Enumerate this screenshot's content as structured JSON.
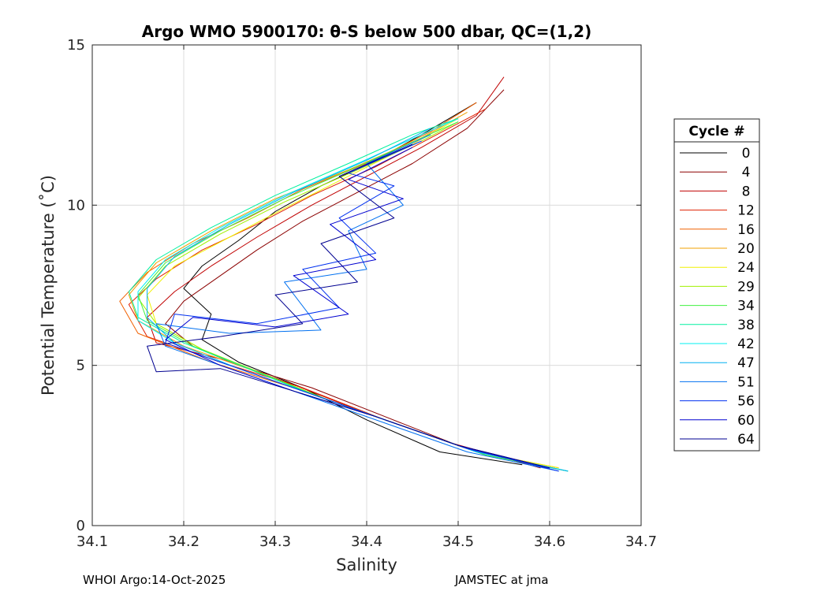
{
  "chart_data": {
    "type": "line",
    "title": "Argo WMO 5900170: θ-S below 500 dbar,  QC=(1,2)",
    "xlabel": "Salinity",
    "ylabel": "Potential Temperature (˚C)",
    "xlim": [
      34.1,
      34.7
    ],
    "ylim": [
      0,
      15
    ],
    "xticks": [
      "34.1",
      "34.2",
      "34.3",
      "34.4",
      "34.5",
      "34.6",
      "34.7"
    ],
    "yticks": [
      "0",
      "5",
      "10",
      "15"
    ],
    "grid": true,
    "legend": {
      "title": "Cycle #",
      "position": "outside-right",
      "entries": [
        {
          "label": "0",
          "color": "#000000"
        },
        {
          "label": "4",
          "color": "#8b0000"
        },
        {
          "label": "8",
          "color": "#c00000"
        },
        {
          "label": "12",
          "color": "#e02000"
        },
        {
          "label": "16",
          "color": "#f06000"
        },
        {
          "label": "20",
          "color": "#f0a000"
        },
        {
          "label": "24",
          "color": "#f0f000"
        },
        {
          "label": "29",
          "color": "#a0f000"
        },
        {
          "label": "34",
          "color": "#40f040"
        },
        {
          "label": "38",
          "color": "#00f0a0"
        },
        {
          "label": "42",
          "color": "#00f0f0"
        },
        {
          "label": "47",
          "color": "#00b0f0"
        },
        {
          "label": "51",
          "color": "#0070f0"
        },
        {
          "label": "56",
          "color": "#0030f0"
        },
        {
          "label": "60",
          "color": "#0000d0"
        },
        {
          "label": "64",
          "color": "#000090"
        }
      ]
    },
    "series": [
      {
        "name": "0",
        "color": "#000000",
        "x": [
          34.57,
          34.48,
          34.4,
          34.33,
          34.26,
          34.22,
          34.23,
          34.2,
          34.22,
          34.26,
          34.3,
          34.35,
          34.41,
          34.46,
          34.52
        ],
        "y": [
          1.9,
          2.3,
          3.3,
          4.3,
          5.1,
          5.8,
          6.6,
          7.4,
          8.1,
          8.9,
          9.8,
          10.6,
          11.4,
          12.2,
          13.2
        ]
      },
      {
        "name": "4",
        "color": "#8b0000",
        "x": [
          34.59,
          34.5,
          34.42,
          34.34,
          34.26,
          34.21,
          34.18,
          34.2,
          34.24,
          34.28,
          34.33,
          34.39,
          34.45,
          34.51,
          34.55
        ],
        "y": [
          1.8,
          2.5,
          3.4,
          4.3,
          5.0,
          5.6,
          6.3,
          7.0,
          7.8,
          8.6,
          9.5,
          10.4,
          11.3,
          12.4,
          13.6
        ]
      },
      {
        "name": "8",
        "color": "#c00000",
        "x": [
          34.59,
          34.49,
          34.4,
          34.32,
          34.24,
          34.17,
          34.16,
          34.19,
          34.23,
          34.28,
          34.34,
          34.4,
          34.46,
          34.52,
          34.55
        ],
        "y": [
          1.8,
          2.6,
          3.5,
          4.4,
          5.2,
          5.7,
          6.5,
          7.3,
          8.1,
          9.0,
          10.0,
          10.9,
          11.8,
          12.8,
          14.0
        ]
      },
      {
        "name": "12",
        "color": "#e02000",
        "x": [
          34.6,
          34.51,
          34.42,
          34.33,
          34.24,
          34.16,
          34.14,
          34.17,
          34.22,
          34.28,
          34.34,
          34.41,
          34.47,
          34.53
        ],
        "y": [
          1.8,
          2.4,
          3.3,
          4.3,
          5.1,
          5.9,
          6.9,
          7.7,
          8.6,
          9.4,
          10.3,
          11.2,
          12.1,
          13.0
        ]
      },
      {
        "name": "16",
        "color": "#f06000",
        "x": [
          34.6,
          34.5,
          34.41,
          34.32,
          34.23,
          34.15,
          34.13,
          34.16,
          34.21,
          34.27,
          34.33,
          34.4,
          34.47,
          34.52
        ],
        "y": [
          1.8,
          2.5,
          3.4,
          4.3,
          5.1,
          6.0,
          7.0,
          7.9,
          8.8,
          9.6,
          10.5,
          11.3,
          12.3,
          13.2
        ]
      },
      {
        "name": "20",
        "color": "#f0a000",
        "x": [
          34.61,
          34.52,
          34.43,
          34.34,
          34.27,
          34.2,
          34.15,
          34.14,
          34.17,
          34.23,
          34.3,
          34.38,
          34.46,
          34.51
        ],
        "y": [
          1.8,
          2.3,
          3.2,
          4.1,
          4.9,
          5.6,
          6.4,
          7.2,
          8.2,
          9.2,
          10.2,
          11.1,
          12.1,
          12.9
        ]
      },
      {
        "name": "24",
        "color": "#f0f000",
        "x": [
          34.61,
          34.52,
          34.43,
          34.35,
          34.28,
          34.22,
          34.17,
          34.16,
          34.19,
          34.25,
          34.31,
          34.38,
          34.45,
          34.5
        ],
        "y": [
          1.8,
          2.3,
          3.2,
          4.0,
          4.8,
          5.5,
          6.3,
          7.2,
          8.1,
          9.0,
          9.9,
          10.9,
          11.9,
          12.7
        ]
      },
      {
        "name": "29",
        "color": "#a0f000",
        "x": [
          34.62,
          34.53,
          34.44,
          34.36,
          34.29,
          34.22,
          34.17,
          34.15,
          34.18,
          34.24,
          34.31,
          34.39,
          34.46,
          34.5
        ],
        "y": [
          1.7,
          2.2,
          3.1,
          3.9,
          4.7,
          5.5,
          6.3,
          7.1,
          8.1,
          9.1,
          10.1,
          11.1,
          12.0,
          12.6
        ]
      },
      {
        "name": "34",
        "color": "#40f040",
        "x": [
          34.62,
          34.53,
          34.44,
          34.35,
          34.28,
          34.21,
          34.16,
          34.15,
          34.18,
          34.24,
          34.31,
          34.39,
          34.46,
          34.5
        ],
        "y": [
          1.7,
          2.2,
          3.1,
          4.0,
          4.8,
          5.6,
          6.4,
          7.2,
          8.2,
          9.2,
          10.2,
          11.2,
          12.1,
          12.6
        ]
      },
      {
        "name": "38",
        "color": "#00f0a0",
        "x": [
          34.62,
          34.52,
          34.43,
          34.34,
          34.27,
          34.2,
          34.15,
          34.14,
          34.17,
          34.23,
          34.3,
          34.38,
          34.45,
          34.5
        ],
        "y": [
          1.7,
          2.3,
          3.2,
          4.1,
          4.9,
          5.7,
          6.5,
          7.3,
          8.3,
          9.3,
          10.3,
          11.3,
          12.2,
          12.7
        ]
      },
      {
        "name": "42",
        "color": "#00f0f0",
        "x": [
          34.62,
          34.52,
          34.43,
          34.34,
          34.26,
          34.19,
          34.15,
          34.15,
          34.18,
          34.24,
          34.31,
          34.39,
          34.46,
          34.5
        ],
        "y": [
          1.7,
          2.3,
          3.2,
          4.1,
          4.9,
          5.7,
          6.4,
          7.3,
          8.3,
          9.3,
          10.3,
          11.3,
          12.2,
          12.7
        ]
      },
      {
        "name": "47",
        "color": "#00b0f0",
        "x": [
          34.62,
          34.52,
          34.43,
          34.34,
          34.26,
          34.19,
          34.16,
          34.16,
          34.19,
          34.25,
          34.32,
          34.4,
          34.47
        ],
        "y": [
          1.7,
          2.3,
          3.2,
          4.1,
          4.9,
          5.7,
          6.5,
          7.4,
          8.4,
          9.4,
          10.4,
          11.4,
          12.4
        ]
      },
      {
        "name": "51",
        "color": "#0070f0",
        "x": [
          34.61,
          34.51,
          34.42,
          34.33,
          34.25,
          34.18,
          34.17,
          34.25,
          34.35,
          34.31,
          34.4,
          34.38,
          34.44,
          34.4,
          34.47
        ],
        "y": [
          1.7,
          2.3,
          3.2,
          4.1,
          4.9,
          5.6,
          6.3,
          6.0,
          6.1,
          7.6,
          8.0,
          9.2,
          10.0,
          11.3,
          12.2
        ]
      },
      {
        "name": "56",
        "color": "#0030f0",
        "x": [
          34.61,
          34.51,
          34.42,
          34.33,
          34.25,
          34.18,
          34.19,
          34.28,
          34.37,
          34.33,
          34.41,
          34.37,
          34.43,
          34.38,
          34.46
        ],
        "y": [
          1.7,
          2.4,
          3.3,
          4.2,
          5.0,
          5.7,
          6.6,
          6.3,
          6.8,
          8.0,
          8.5,
          9.6,
          10.6,
          11.0,
          12.0
        ]
      },
      {
        "name": "60",
        "color": "#0000d0",
        "x": [
          34.6,
          34.5,
          34.41,
          34.32,
          34.24,
          34.18,
          34.21,
          34.3,
          34.38,
          34.32,
          34.41,
          34.36,
          34.44,
          34.38,
          34.45
        ],
        "y": [
          1.8,
          2.5,
          3.4,
          4.2,
          5.0,
          5.8,
          6.5,
          6.2,
          6.6,
          7.8,
          8.3,
          9.4,
          10.2,
          10.8,
          11.8
        ]
      },
      {
        "name": "64",
        "color": "#000090",
        "x": [
          34.6,
          34.5,
          34.41,
          34.32,
          34.24,
          34.17,
          34.16,
          34.24,
          34.33,
          34.3,
          34.39,
          34.35,
          34.43,
          34.37,
          34.45
        ],
        "y": [
          1.8,
          2.5,
          3.4,
          4.2,
          4.9,
          4.8,
          5.6,
          5.9,
          6.3,
          7.2,
          7.6,
          8.8,
          9.6,
          10.9,
          11.9
        ]
      }
    ]
  },
  "footer": {
    "left": "WHOI Argo:14-Oct-2025",
    "right": "JAMSTEC at jma"
  }
}
